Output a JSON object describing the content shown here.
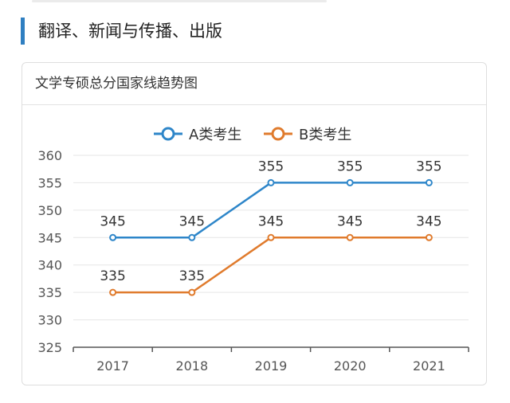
{
  "page": {
    "section_title": "翻译、新闻与传播、出版",
    "card_title": "文学专硕总分国家线趋势图"
  },
  "colors": {
    "accent": "#2f7fc1",
    "series_a": "#2e86c9",
    "series_b": "#e07b2d",
    "grid": "#e6e6e6",
    "axis": "#555555",
    "tick_text": "#555555",
    "label_text": "#333333"
  },
  "chart_data": {
    "type": "line",
    "title": "",
    "xlabel": "",
    "ylabel": "",
    "categories": [
      "2017",
      "2018",
      "2019",
      "2020",
      "2021"
    ],
    "series": [
      {
        "name": "A类考生",
        "values": [
          345,
          345,
          355,
          355,
          355
        ]
      },
      {
        "name": "B类考生",
        "values": [
          335,
          335,
          345,
          345,
          345
        ]
      }
    ],
    "ylim": [
      325,
      360
    ],
    "yticks": [
      "325",
      "330",
      "335",
      "340",
      "345",
      "350",
      "355",
      "360"
    ],
    "grid": true,
    "legend_position": "top-center",
    "data_labels": true
  }
}
